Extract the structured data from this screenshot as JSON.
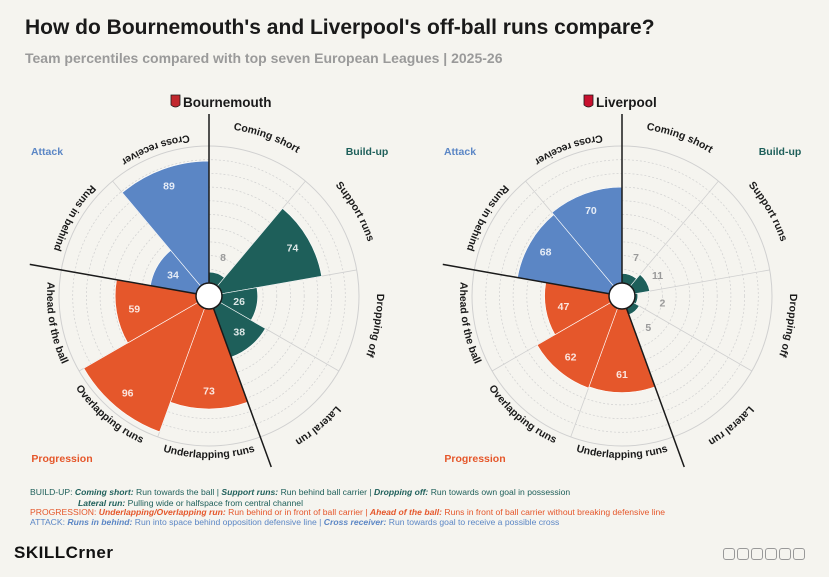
{
  "title": "How do Bournemouth's and Liverpool's off-ball runs compare?",
  "subtitle": "Team percentiles compared with top seven European Leagues | 2025-26",
  "colors": {
    "build_up": "#1e5f5a",
    "progression": "#e5572b",
    "attack": "#5b86c5",
    "grid": "#d0d0d0",
    "background": "#f5f4ef"
  },
  "groups": {
    "attack": "Attack",
    "build_up": "Build-up",
    "progression": "Progression"
  },
  "teams": [
    {
      "name": "Bournemouth",
      "crest_icon": "bournemouth-crest-icon"
    },
    {
      "name": "Liverpool",
      "crest_icon": "liverpool-crest-icon"
    }
  ],
  "chart_data": [
    {
      "type": "polar-bar",
      "title": "Bournemouth",
      "rlim": [
        0,
        100
      ],
      "categories": [
        "Coming short",
        "Support runs",
        "Dropping off",
        "Lateral run",
        "Underlapping runs",
        "Overlapping runs",
        "Ahead of the ball",
        "Runs in behind",
        "Cross receiver"
      ],
      "category_group": [
        "build_up",
        "build_up",
        "build_up",
        "build_up",
        "progression",
        "progression",
        "progression",
        "attack",
        "attack"
      ],
      "values": [
        8,
        74,
        26,
        38,
        73,
        96,
        59,
        34,
        89
      ]
    },
    {
      "type": "polar-bar",
      "title": "Liverpool",
      "rlim": [
        0,
        100
      ],
      "categories": [
        "Coming short",
        "Support runs",
        "Dropping off",
        "Lateral run",
        "Underlapping runs",
        "Overlapping runs",
        "Ahead of the ball",
        "Runs in behind",
        "Cross receiver"
      ],
      "category_group": [
        "build_up",
        "build_up",
        "build_up",
        "build_up",
        "progression",
        "progression",
        "progression",
        "attack",
        "attack"
      ],
      "values": [
        7,
        11,
        2,
        5,
        61,
        62,
        47,
        68,
        70
      ]
    }
  ],
  "legend": {
    "build_up_prefix": "BUILD-UP:",
    "coming_short_term": "Coming short:",
    "coming_short_desc": "Run towards the ball |",
    "support_runs_term": "Support runs:",
    "support_runs_desc": "Run behind ball carrier |",
    "dropping_off_term": "Dropping off:",
    "dropping_off_desc": "Run towards own goal in possession",
    "lateral_run_term": "Lateral run:",
    "lateral_run_desc": "Pulling wide or halfspace from central channel",
    "progression_prefix": "PROGRESSION:",
    "underover_term": "Underlapping/Overlapping run:",
    "underover_desc": "Run behind or in front of ball carrier |",
    "ahead_term": "Ahead of the ball:",
    "ahead_desc": "Runs in front of ball carrier without breaking defensive line",
    "attack_prefix": "ATTACK:",
    "behind_term": "Runs in behind:",
    "behind_desc": "Run into space behind opposition defensive line |",
    "cross_term": "Cross receiver:",
    "cross_desc": "Run towards goal to receive a possible cross"
  },
  "brand": {
    "part1": "SKILL",
    "part2": "C",
    "part3": "rner"
  }
}
